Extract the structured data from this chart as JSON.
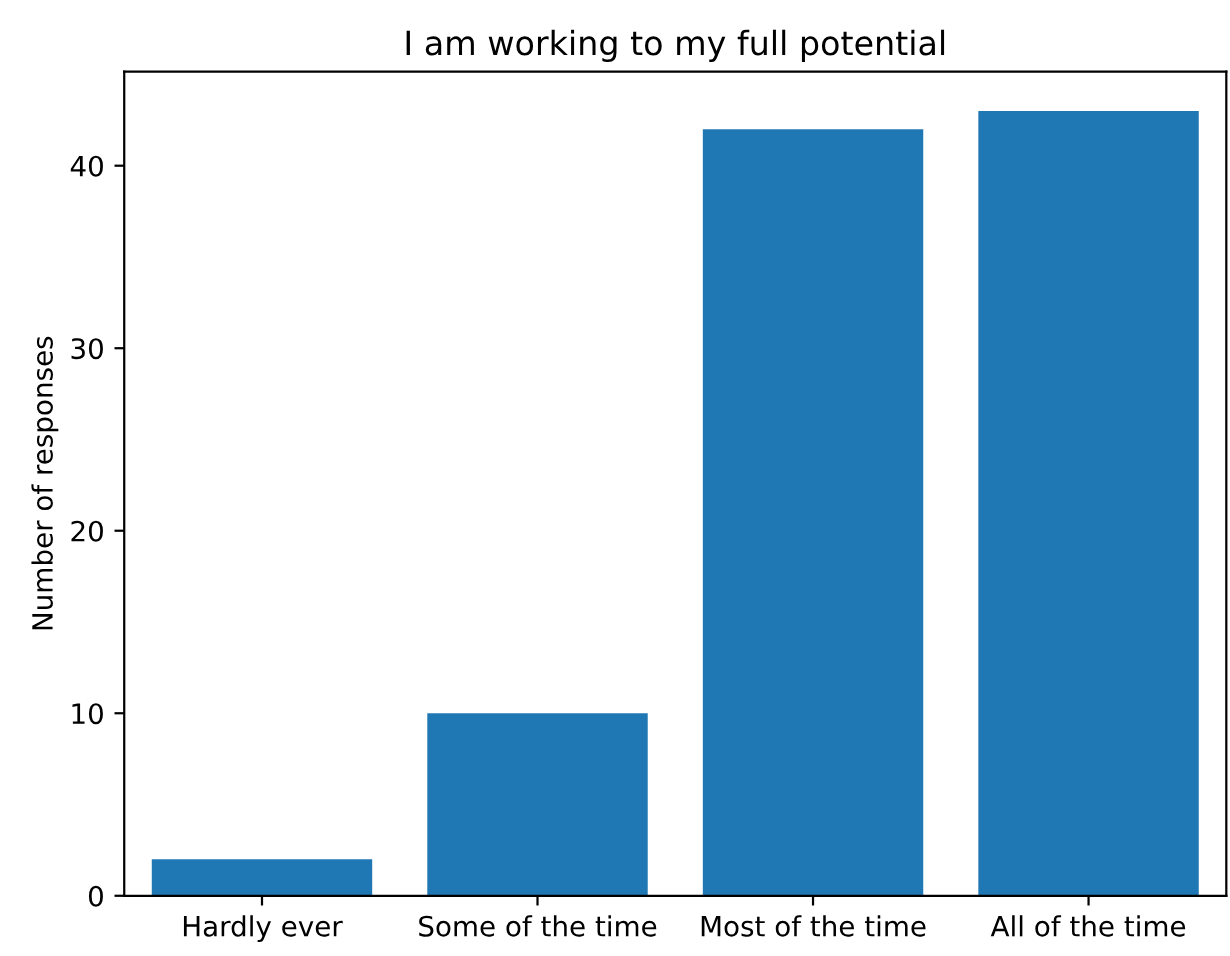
{
  "chart_data": {
    "type": "bar",
    "title": "I am working to my full potential",
    "ylabel": "Number of responses",
    "categories": [
      "Hardly ever",
      "Some of the time",
      "Most of the time",
      "All of the time"
    ],
    "values": [
      2,
      10,
      42,
      43
    ],
    "color": "#1f77b4",
    "ylim": [
      0,
      45.15
    ],
    "yticks": [
      0,
      10,
      20,
      30,
      40
    ],
    "grid": false,
    "legend": false
  }
}
